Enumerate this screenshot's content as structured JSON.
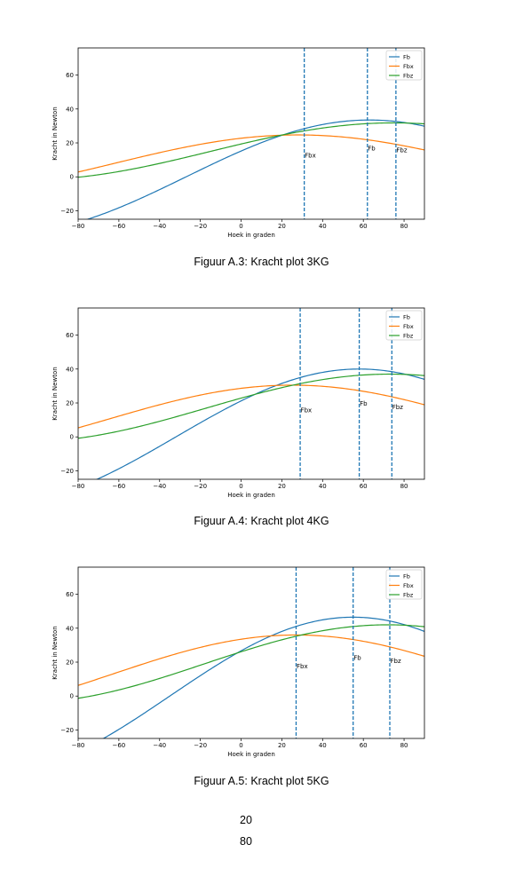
{
  "chart_data": [
    {
      "type": "line",
      "xlabel": "Hoek in graden",
      "ylabel": "Kracht in Newton",
      "xlim": [
        -80,
        90
      ],
      "ylim": [
        -25,
        76
      ],
      "xticks": [
        -80,
        -60,
        -40,
        -20,
        0,
        20,
        40,
        60,
        80
      ],
      "yticks": [
        -20,
        0,
        20,
        40,
        60
      ],
      "legend": "top-right",
      "grid": false,
      "series": [
        {
          "name": "Fb",
          "color": "#1f77b4",
          "amp": 33.5,
          "peak": 63,
          "offset": 0
        },
        {
          "name": "Fbx",
          "color": "#ff7f0e",
          "amp": 16.7,
          "peak": 28,
          "offset": 8
        },
        {
          "name": "Fbz",
          "color": "#2ca02c",
          "amp": 16.8,
          "peak": 75,
          "offset": 15
        }
      ],
      "vlines": [
        {
          "x": 31,
          "label": "Fbx",
          "label_y": 13
        },
        {
          "x": 62,
          "label": "Fb",
          "label_y": 17
        },
        {
          "x": 76,
          "label": "Fbz",
          "label_y": 16
        }
      ]
    },
    {
      "type": "line",
      "xlabel": "Hoek in graden",
      "ylabel": "Kracht in Newton",
      "xlim": [
        -80,
        90
      ],
      "ylim": [
        -25,
        76
      ],
      "xticks": [
        -80,
        -60,
        -40,
        -20,
        0,
        20,
        40,
        60,
        80
      ],
      "yticks": [
        -20,
        0,
        20,
        40,
        60
      ],
      "legend": "top-right",
      "grid": false,
      "series": [
        {
          "name": "Fb",
          "color": "#1f77b4",
          "amp": 40,
          "peak": 58,
          "offset": 0
        },
        {
          "name": "Fbx",
          "color": "#ff7f0e",
          "amp": 20,
          "peak": 25,
          "offset": 10.5
        },
        {
          "name": "Fbz",
          "color": "#2ca02c",
          "amp": 20,
          "peak": 73,
          "offset": 17
        }
      ],
      "vlines": [
        {
          "x": 29,
          "label": "Fbx",
          "label_y": 16
        },
        {
          "x": 58,
          "label": "Fb",
          "label_y": 20
        },
        {
          "x": 74,
          "label": "Fbz",
          "label_y": 18
        }
      ]
    },
    {
      "type": "line",
      "xlabel": "Hoek in graden",
      "ylabel": "Kracht in Newton",
      "xlim": [
        -80,
        90
      ],
      "ylim": [
        -25,
        76
      ],
      "xticks": [
        -80,
        -60,
        -40,
        -20,
        0,
        20,
        40,
        60,
        80
      ],
      "yticks": [
        -20,
        0,
        20,
        40,
        60
      ],
      "legend": "top-right",
      "grid": false,
      "series": [
        {
          "name": "Fb",
          "color": "#1f77b4",
          "amp": 46.5,
          "peak": 55,
          "offset": 0
        },
        {
          "name": "Fbx",
          "color": "#ff7f0e",
          "amp": 23,
          "peak": 27,
          "offset": 13
        },
        {
          "name": "Fbz",
          "color": "#2ca02c",
          "amp": 23,
          "peak": 72,
          "offset": 19
        }
      ],
      "vlines": [
        {
          "x": 27,
          "label": "Fbx",
          "label_y": 18
        },
        {
          "x": 55,
          "label": "Fb",
          "label_y": 23
        },
        {
          "x": 73,
          "label": "Fbz",
          "label_y": 21
        }
      ]
    }
  ],
  "captions": [
    "Figuur A.3: Kracht plot 3KG",
    "Figuur A.4: Kracht plot 4KG",
    "Figuur A.5: Kracht plot 5KG"
  ],
  "page_number": "20",
  "page_number_2": "80"
}
